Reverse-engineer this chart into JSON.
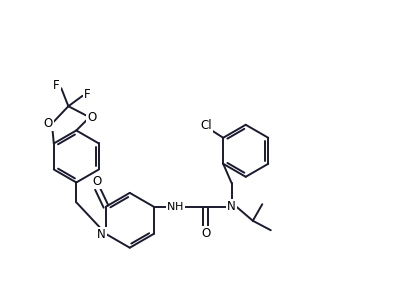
{
  "background_color": "#ffffff",
  "line_color": "#1a1a2e",
  "line_width": 1.4,
  "figsize": [
    4.08,
    2.94
  ],
  "dpi": 100,
  "xlim": [
    0,
    8.5
  ],
  "ylim": [
    -0.3,
    5.8
  ],
  "font_size": 8.5
}
